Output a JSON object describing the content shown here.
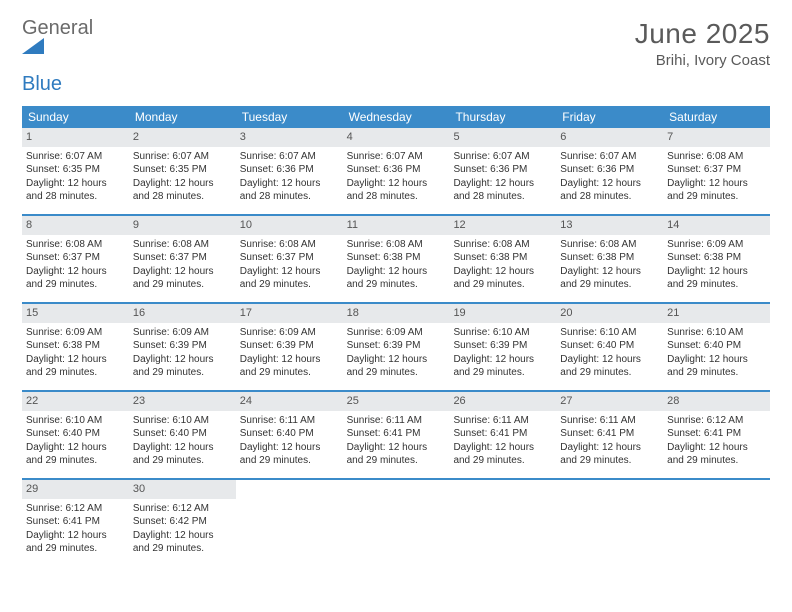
{
  "logo": {
    "general": "General",
    "blue": "Blue"
  },
  "title": "June 2025",
  "location": "Brihi, Ivory Coast",
  "colors": {
    "header_bar": "#3b8bc9",
    "daynum_bg": "#e7e9eb",
    "week_border": "#3b8bc9",
    "logo_blue": "#2f7bbf",
    "text_gray": "#5a5a5a"
  },
  "weekdays": [
    "Sunday",
    "Monday",
    "Tuesday",
    "Wednesday",
    "Thursday",
    "Friday",
    "Saturday"
  ],
  "weeks": [
    [
      {
        "num": "1",
        "sunrise": "Sunrise: 6:07 AM",
        "sunset": "Sunset: 6:35 PM",
        "daylight": "Daylight: 12 hours and 28 minutes."
      },
      {
        "num": "2",
        "sunrise": "Sunrise: 6:07 AM",
        "sunset": "Sunset: 6:35 PM",
        "daylight": "Daylight: 12 hours and 28 minutes."
      },
      {
        "num": "3",
        "sunrise": "Sunrise: 6:07 AM",
        "sunset": "Sunset: 6:36 PM",
        "daylight": "Daylight: 12 hours and 28 minutes."
      },
      {
        "num": "4",
        "sunrise": "Sunrise: 6:07 AM",
        "sunset": "Sunset: 6:36 PM",
        "daylight": "Daylight: 12 hours and 28 minutes."
      },
      {
        "num": "5",
        "sunrise": "Sunrise: 6:07 AM",
        "sunset": "Sunset: 6:36 PM",
        "daylight": "Daylight: 12 hours and 28 minutes."
      },
      {
        "num": "6",
        "sunrise": "Sunrise: 6:07 AM",
        "sunset": "Sunset: 6:36 PM",
        "daylight": "Daylight: 12 hours and 28 minutes."
      },
      {
        "num": "7",
        "sunrise": "Sunrise: 6:08 AM",
        "sunset": "Sunset: 6:37 PM",
        "daylight": "Daylight: 12 hours and 29 minutes."
      }
    ],
    [
      {
        "num": "8",
        "sunrise": "Sunrise: 6:08 AM",
        "sunset": "Sunset: 6:37 PM",
        "daylight": "Daylight: 12 hours and 29 minutes."
      },
      {
        "num": "9",
        "sunrise": "Sunrise: 6:08 AM",
        "sunset": "Sunset: 6:37 PM",
        "daylight": "Daylight: 12 hours and 29 minutes."
      },
      {
        "num": "10",
        "sunrise": "Sunrise: 6:08 AM",
        "sunset": "Sunset: 6:37 PM",
        "daylight": "Daylight: 12 hours and 29 minutes."
      },
      {
        "num": "11",
        "sunrise": "Sunrise: 6:08 AM",
        "sunset": "Sunset: 6:38 PM",
        "daylight": "Daylight: 12 hours and 29 minutes."
      },
      {
        "num": "12",
        "sunrise": "Sunrise: 6:08 AM",
        "sunset": "Sunset: 6:38 PM",
        "daylight": "Daylight: 12 hours and 29 minutes."
      },
      {
        "num": "13",
        "sunrise": "Sunrise: 6:08 AM",
        "sunset": "Sunset: 6:38 PM",
        "daylight": "Daylight: 12 hours and 29 minutes."
      },
      {
        "num": "14",
        "sunrise": "Sunrise: 6:09 AM",
        "sunset": "Sunset: 6:38 PM",
        "daylight": "Daylight: 12 hours and 29 minutes."
      }
    ],
    [
      {
        "num": "15",
        "sunrise": "Sunrise: 6:09 AM",
        "sunset": "Sunset: 6:38 PM",
        "daylight": "Daylight: 12 hours and 29 minutes."
      },
      {
        "num": "16",
        "sunrise": "Sunrise: 6:09 AM",
        "sunset": "Sunset: 6:39 PM",
        "daylight": "Daylight: 12 hours and 29 minutes."
      },
      {
        "num": "17",
        "sunrise": "Sunrise: 6:09 AM",
        "sunset": "Sunset: 6:39 PM",
        "daylight": "Daylight: 12 hours and 29 minutes."
      },
      {
        "num": "18",
        "sunrise": "Sunrise: 6:09 AM",
        "sunset": "Sunset: 6:39 PM",
        "daylight": "Daylight: 12 hours and 29 minutes."
      },
      {
        "num": "19",
        "sunrise": "Sunrise: 6:10 AM",
        "sunset": "Sunset: 6:39 PM",
        "daylight": "Daylight: 12 hours and 29 minutes."
      },
      {
        "num": "20",
        "sunrise": "Sunrise: 6:10 AM",
        "sunset": "Sunset: 6:40 PM",
        "daylight": "Daylight: 12 hours and 29 minutes."
      },
      {
        "num": "21",
        "sunrise": "Sunrise: 6:10 AM",
        "sunset": "Sunset: 6:40 PM",
        "daylight": "Daylight: 12 hours and 29 minutes."
      }
    ],
    [
      {
        "num": "22",
        "sunrise": "Sunrise: 6:10 AM",
        "sunset": "Sunset: 6:40 PM",
        "daylight": "Daylight: 12 hours and 29 minutes."
      },
      {
        "num": "23",
        "sunrise": "Sunrise: 6:10 AM",
        "sunset": "Sunset: 6:40 PM",
        "daylight": "Daylight: 12 hours and 29 minutes."
      },
      {
        "num": "24",
        "sunrise": "Sunrise: 6:11 AM",
        "sunset": "Sunset: 6:40 PM",
        "daylight": "Daylight: 12 hours and 29 minutes."
      },
      {
        "num": "25",
        "sunrise": "Sunrise: 6:11 AM",
        "sunset": "Sunset: 6:41 PM",
        "daylight": "Daylight: 12 hours and 29 minutes."
      },
      {
        "num": "26",
        "sunrise": "Sunrise: 6:11 AM",
        "sunset": "Sunset: 6:41 PM",
        "daylight": "Daylight: 12 hours and 29 minutes."
      },
      {
        "num": "27",
        "sunrise": "Sunrise: 6:11 AM",
        "sunset": "Sunset: 6:41 PM",
        "daylight": "Daylight: 12 hours and 29 minutes."
      },
      {
        "num": "28",
        "sunrise": "Sunrise: 6:12 AM",
        "sunset": "Sunset: 6:41 PM",
        "daylight": "Daylight: 12 hours and 29 minutes."
      }
    ],
    [
      {
        "num": "29",
        "sunrise": "Sunrise: 6:12 AM",
        "sunset": "Sunset: 6:41 PM",
        "daylight": "Daylight: 12 hours and 29 minutes."
      },
      {
        "num": "30",
        "sunrise": "Sunrise: 6:12 AM",
        "sunset": "Sunset: 6:42 PM",
        "daylight": "Daylight: 12 hours and 29 minutes."
      },
      {
        "empty": true
      },
      {
        "empty": true
      },
      {
        "empty": true
      },
      {
        "empty": true
      },
      {
        "empty": true
      }
    ]
  ]
}
